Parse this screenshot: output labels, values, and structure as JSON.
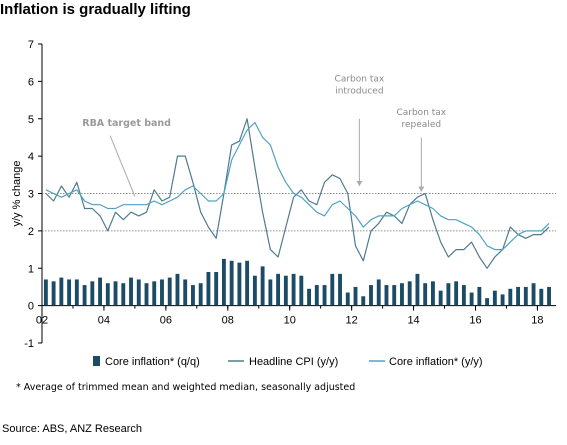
{
  "title": "Inflation is gradually lifting",
  "footnote": "* Average of trimmed mean and weighted median, seasonally adjusted",
  "source": "Source: ABS, ANZ Research",
  "chart_data": {
    "type": "bar+line",
    "title": "Inflation is gradually lifting",
    "ylabel": "y/y % change",
    "xlabel": "",
    "ylim": [
      -1,
      7
    ],
    "xlim": [
      2002.0,
      2018.6
    ],
    "y_ticks": [
      "-1",
      "0",
      "1",
      "2",
      "3",
      "4",
      "5",
      "6",
      "7"
    ],
    "x_ticks": [
      "02",
      "04",
      "06",
      "08",
      "10",
      "12",
      "14",
      "16",
      "18"
    ],
    "x_tick_values": [
      2002,
      2004,
      2006,
      2008,
      2010,
      2012,
      2014,
      2016,
      2018
    ],
    "reference_lines": [
      2,
      3
    ],
    "colors": {
      "bars": "#1b4b66",
      "headline": "#4f7b8e",
      "core": "#4fa3c2",
      "reference": "#6e6e6e",
      "annotation": "#9a9a9a"
    },
    "series": [
      {
        "name": "Core inflation* (q/q)",
        "type": "bar",
        "x": [
          2002.0,
          2002.25,
          2002.5,
          2002.75,
          2003.0,
          2003.25,
          2003.5,
          2003.75,
          2004.0,
          2004.25,
          2004.5,
          2004.75,
          2005.0,
          2005.25,
          2005.5,
          2005.75,
          2006.0,
          2006.25,
          2006.5,
          2006.75,
          2007.0,
          2007.25,
          2007.5,
          2007.75,
          2008.0,
          2008.25,
          2008.5,
          2008.75,
          2009.0,
          2009.25,
          2009.5,
          2009.75,
          2010.0,
          2010.25,
          2010.5,
          2010.75,
          2011.0,
          2011.25,
          2011.5,
          2011.75,
          2012.0,
          2012.25,
          2012.5,
          2012.75,
          2013.0,
          2013.25,
          2013.5,
          2013.75,
          2014.0,
          2014.25,
          2014.5,
          2014.75,
          2015.0,
          2015.25,
          2015.5,
          2015.75,
          2016.0,
          2016.25,
          2016.5,
          2016.75,
          2017.0,
          2017.25,
          2017.5,
          2017.75,
          2018.0,
          2018.25
        ],
        "values": [
          0.7,
          0.65,
          0.75,
          0.7,
          0.7,
          0.55,
          0.65,
          0.75,
          0.6,
          0.65,
          0.6,
          0.75,
          0.7,
          0.6,
          0.65,
          0.7,
          0.75,
          0.85,
          0.7,
          0.55,
          0.6,
          0.9,
          0.9,
          1.25,
          1.2,
          1.15,
          1.2,
          0.8,
          1.05,
          0.7,
          0.85,
          0.8,
          0.85,
          0.8,
          0.45,
          0.55,
          0.55,
          0.85,
          0.85,
          0.35,
          0.5,
          0.25,
          0.55,
          0.7,
          0.55,
          0.55,
          0.6,
          0.65,
          0.85,
          0.6,
          0.65,
          0.4,
          0.6,
          0.65,
          0.55,
          0.35,
          0.5,
          0.2,
          0.4,
          0.3,
          0.45,
          0.5,
          0.5,
          0.6,
          0.45,
          0.5
        ]
      },
      {
        "name": "Headline CPI (y/y)",
        "type": "line",
        "x": [
          2002.0,
          2002.25,
          2002.5,
          2002.75,
          2003.0,
          2003.25,
          2003.5,
          2003.75,
          2004.0,
          2004.25,
          2004.5,
          2004.75,
          2005.0,
          2005.25,
          2005.5,
          2005.75,
          2006.0,
          2006.25,
          2006.5,
          2006.75,
          2007.0,
          2007.25,
          2007.5,
          2007.75,
          2008.0,
          2008.25,
          2008.5,
          2008.75,
          2009.0,
          2009.25,
          2009.5,
          2009.75,
          2010.0,
          2010.25,
          2010.5,
          2010.75,
          2011.0,
          2011.25,
          2011.5,
          2011.75,
          2012.0,
          2012.25,
          2012.5,
          2012.75,
          2013.0,
          2013.25,
          2013.5,
          2013.75,
          2014.0,
          2014.25,
          2014.5,
          2014.75,
          2015.0,
          2015.25,
          2015.5,
          2015.75,
          2016.0,
          2016.25,
          2016.5,
          2016.75,
          2017.0,
          2017.25,
          2017.5,
          2017.75,
          2018.0,
          2018.25
        ],
        "values": [
          3.0,
          2.8,
          3.2,
          2.9,
          3.3,
          2.6,
          2.6,
          2.4,
          2.0,
          2.5,
          2.3,
          2.5,
          2.4,
          2.5,
          3.1,
          2.8,
          2.9,
          4.0,
          4.0,
          3.3,
          2.5,
          2.1,
          1.8,
          3.0,
          4.3,
          4.4,
          5.0,
          3.7,
          2.5,
          1.5,
          1.3,
          2.1,
          2.9,
          3.1,
          2.8,
          2.7,
          3.3,
          3.5,
          3.4,
          3.0,
          1.6,
          1.2,
          2.0,
          2.2,
          2.5,
          2.4,
          2.2,
          2.7,
          2.9,
          3.0,
          2.3,
          1.7,
          1.3,
          1.5,
          1.5,
          1.7,
          1.3,
          1.0,
          1.3,
          1.5,
          2.1,
          1.9,
          1.8,
          1.9,
          1.9,
          2.1
        ]
      },
      {
        "name": "Core inflation* (y/y)",
        "type": "line",
        "x": [
          2002.0,
          2002.25,
          2002.5,
          2002.75,
          2003.0,
          2003.25,
          2003.5,
          2003.75,
          2004.0,
          2004.25,
          2004.5,
          2004.75,
          2005.0,
          2005.25,
          2005.5,
          2005.75,
          2006.0,
          2006.25,
          2006.5,
          2006.75,
          2007.0,
          2007.25,
          2007.5,
          2007.75,
          2008.0,
          2008.25,
          2008.5,
          2008.75,
          2009.0,
          2009.25,
          2009.5,
          2009.75,
          2010.0,
          2010.25,
          2010.5,
          2010.75,
          2011.0,
          2011.25,
          2011.5,
          2011.75,
          2012.0,
          2012.25,
          2012.5,
          2012.75,
          2013.0,
          2013.25,
          2013.5,
          2013.75,
          2014.0,
          2014.25,
          2014.5,
          2014.75,
          2015.0,
          2015.25,
          2015.5,
          2015.75,
          2016.0,
          2016.25,
          2016.5,
          2016.75,
          2017.0,
          2017.25,
          2017.5,
          2017.75,
          2018.0,
          2018.25
        ],
        "values": [
          3.1,
          3.0,
          2.9,
          3.0,
          3.1,
          2.8,
          2.7,
          2.7,
          2.6,
          2.6,
          2.7,
          2.7,
          2.7,
          2.7,
          2.8,
          2.7,
          2.8,
          2.9,
          3.1,
          3.2,
          3.0,
          2.8,
          2.8,
          3.0,
          3.9,
          4.3,
          4.7,
          4.9,
          4.5,
          4.3,
          3.7,
          3.3,
          3.0,
          2.9,
          2.7,
          2.5,
          2.4,
          2.7,
          2.8,
          2.6,
          2.4,
          2.1,
          2.3,
          2.4,
          2.4,
          2.4,
          2.6,
          2.7,
          2.8,
          2.7,
          2.6,
          2.4,
          2.3,
          2.3,
          2.2,
          2.1,
          1.9,
          1.6,
          1.5,
          1.5,
          1.7,
          1.9,
          2.0,
          2.0,
          2.0,
          2.2
        ]
      }
    ],
    "legend": {
      "position": "bottom",
      "entries": [
        "Core inflation* (q/q)",
        "Headline CPI (y/y)",
        "Core inflation* (y/y)"
      ]
    },
    "annotations": [
      {
        "text": "RBA target band",
        "x": 2005.0,
        "y": 3.0
      },
      {
        "text": "Carbon tax introduced",
        "x": 2012.25,
        "y": 3.2
      },
      {
        "text": "Carbon tax repealed",
        "x": 2014.25,
        "y": 3.05
      }
    ]
  }
}
